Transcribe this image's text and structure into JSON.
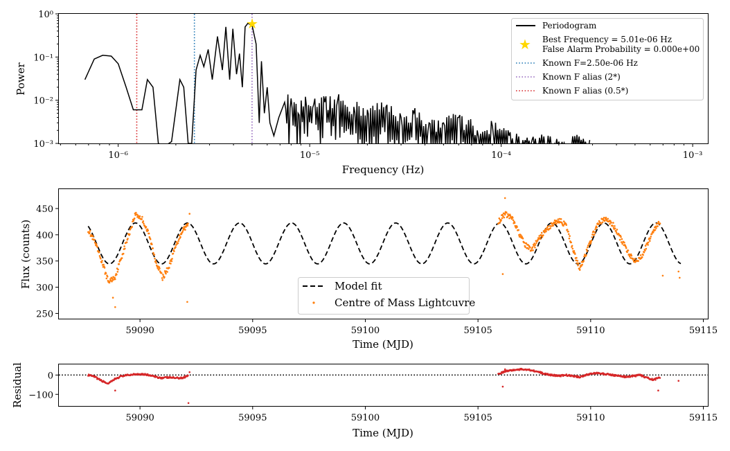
{
  "chart_data": [
    {
      "type": "line",
      "xscale": "log",
      "yscale": "log",
      "xlabel": "Frequency (Hz)",
      "ylabel": "Power",
      "xlim": [
        4.9e-07,
        0.0012
      ],
      "ylim": [
        0.001,
        1.0
      ],
      "xticks": [
        {
          "value": 1e-06,
          "label": "10⁻⁶"
        },
        {
          "value": 1e-05,
          "label": "10⁻⁵"
        },
        {
          "value": 0.0001,
          "label": "10⁻⁴"
        },
        {
          "value": 0.001,
          "label": "10⁻³"
        }
      ],
      "yticks": [
        {
          "value": 1,
          "label": "10⁰"
        },
        {
          "value": 0.1,
          "label": "10⁻¹"
        },
        {
          "value": 0.01,
          "label": "10⁻²"
        },
        {
          "value": 0.001,
          "label": "10⁻³"
        }
      ],
      "series": [
        {
          "name": "Periodogram",
          "color": "#000000",
          "x": [
            6.7e-07,
            7.5e-07,
            8.3e-07,
            9.2e-07,
            1e-06,
            1.1e-06,
            1.2e-06,
            1.33e-06,
            1.42e-06,
            1.52e-06,
            1.62e-06,
            1.75e-06,
            1.9e-06,
            2e-06,
            2.1e-06,
            2.2e-06,
            2.32e-06,
            2.42e-06,
            2.55e-06,
            2.68e-06,
            2.8e-06,
            2.95e-06,
            3.1e-06,
            3.3e-06,
            3.5e-06,
            3.65e-06,
            3.82e-06,
            3.97e-06,
            4.15e-06,
            4.3e-06,
            4.45e-06,
            4.6e-06,
            4.75e-06,
            5e-06,
            5.25e-06,
            5.45e-06,
            5.6e-06,
            5.8e-06,
            6e-06,
            6.2e-06,
            6.5e-06,
            6.9e-06,
            7.4e-06,
            8e-06,
            8.7e-06,
            9.5e-06,
            1.05e-05,
            1.2e-05,
            1.4e-05,
            1.7e-05,
            2e-05,
            2.5e-05,
            3e-05,
            3.5e-05,
            4.2e-05,
            5e-05,
            6e-05,
            7.5e-05,
            9e-05,
            0.00011,
            0.000135,
            0.000145,
            0.0002,
            0.00029
          ],
          "y": [
            0.03,
            0.09,
            0.11,
            0.105,
            0.07,
            0.02,
            0.006,
            0.006,
            0.03,
            0.02,
            0.001,
            0.0008,
            0.0011,
            0.006,
            0.03,
            0.02,
            0.001,
            0.001,
            0.05,
            0.11,
            0.06,
            0.15,
            0.03,
            0.3,
            0.05,
            0.5,
            0.03,
            0.45,
            0.04,
            0.12,
            0.02,
            0.5,
            0.6,
            0.55,
            0.2,
            0.003,
            0.08,
            0.005,
            0.02,
            0.003,
            0.0015,
            0.004,
            0.009,
            0.011,
            0.005,
            0.012,
            0.008,
            0.009,
            0.01,
            0.007,
            0.006,
            0.007,
            0.004,
            0.005,
            0.003,
            0.003,
            0.004,
            0.002,
            0.0025,
            0.0015,
            0.001,
            0.0012,
            0.0011,
            0.0012
          ]
        }
      ],
      "best_frequency": {
        "x": 5.01e-06,
        "y": 0.6,
        "color": "#ffd700"
      },
      "vlines": [
        {
          "x": 2.5e-06,
          "color": "#1f77b4",
          "style": "dotted"
        },
        {
          "x": 5e-06,
          "color": "#9467bd",
          "style": "dotted"
        },
        {
          "x": 1.25e-06,
          "color": "#d62728",
          "style": "dotted"
        }
      ],
      "legend": {
        "placement": "top-right",
        "entries": [
          {
            "label": "Periodogram",
            "marker": "line",
            "color": "#000000"
          },
          {
            "label": "Best Frequency = 5.01e-06 Hz",
            "label2": "False Alarm Probability = 0.000e+00",
            "marker": "star",
            "color": "#ffd700"
          },
          {
            "label": "Known F=2.50e-06 Hz",
            "marker": "dotted",
            "color": "#1f77b4"
          },
          {
            "label": "Known F alias (2*)",
            "marker": "dotted",
            "color": "#9467bd"
          },
          {
            "label": "Known F alias (0.5*)",
            "marker": "dotted",
            "color": "#d62728"
          }
        ]
      }
    },
    {
      "type": "scatter",
      "xlabel": "Time (MJD)",
      "ylabel": "Flux (counts)",
      "xlim": [
        59086.4,
        59115.2
      ],
      "ylim": [
        240,
        487
      ],
      "xticks": [
        59090,
        59095,
        59100,
        59105,
        59110,
        59115
      ],
      "yticks": [
        250,
        300,
        350,
        400,
        450
      ],
      "model": {
        "name": "Model fit",
        "color": "#000000",
        "style": "dashed",
        "mean": 383.5,
        "amplitude": 39,
        "period_days": 2.31,
        "x_start": 59087.7,
        "x_end": 59114.0,
        "phase_ref_peak": 59089.8
      },
      "series": [
        {
          "name": "Centre of Mass Lightcuvre",
          "color": "#ff7f0e",
          "segments": [
            {
              "x": [
                59087.7,
                59088.0,
                59088.3,
                59088.6,
                59088.9,
                59089.2,
                59089.5,
                59089.8,
                59090.1,
                59090.4,
                59090.7,
                59091.0,
                59091.3,
                59091.6,
                59091.9,
                59092.15
              ],
              "y": [
                410,
                385,
                350,
                310,
                320,
                360,
                400,
                440,
                430,
                400,
                350,
                318,
                340,
                380,
                410,
                420
              ]
            },
            {
              "x": [
                59105.9,
                59106.2,
                59106.5,
                59106.8,
                59107.1,
                59107.4,
                59107.7,
                59108.0,
                59108.3,
                59108.6,
                59108.9,
                59109.2,
                59109.5,
                59109.8,
                59110.1,
                59110.4,
                59110.7,
                59111.0,
                59111.3,
                59111.6,
                59111.9,
                59112.2,
                59112.5,
                59112.8,
                59113.1
              ],
              "y": [
                425,
                440,
                432,
                405,
                380,
                372,
                392,
                408,
                420,
                428,
                418,
                375,
                335,
                365,
                400,
                425,
                430,
                418,
                395,
                372,
                352,
                355,
                380,
                410,
                425
              ]
            }
          ],
          "outliers": [
            [
              59088.9,
              262
            ],
            [
              59088.8,
              280
            ],
            [
              59092.1,
              272
            ],
            [
              59092.2,
              440
            ],
            [
              59106.2,
              470
            ],
            [
              59106.1,
              325
            ],
            [
              59113.2,
              322
            ],
            [
              59113.95,
              318
            ],
            [
              59113.9,
              330
            ]
          ]
        }
      ],
      "legend": {
        "placement": "bottom-center",
        "entries": [
          {
            "label": "Model fit",
            "marker": "dashed",
            "color": "#000000"
          },
          {
            "label": "Centre of Mass Lightcuvre",
            "marker": "dot",
            "color": "#ff7f0e"
          }
        ]
      }
    },
    {
      "type": "scatter",
      "xlabel": "Time (MJD)",
      "ylabel": "Residual",
      "xlim": [
        59086.4,
        59115.2
      ],
      "ylim": [
        -160,
        55
      ],
      "xticks": [
        59090,
        59095,
        59100,
        59105,
        59110,
        59115
      ],
      "yticks": [
        {
          "value": 0,
          "label": "0"
        },
        {
          "value": -100,
          "label": "−100"
        }
      ],
      "zero_line": {
        "y": 0,
        "color": "#000000",
        "style": "dotted"
      },
      "series": [
        {
          "name": "",
          "color": "#d62728",
          "segments": [
            {
              "x": [
                59087.7,
                59088.0,
                59088.3,
                59088.6,
                59088.9,
                59089.2,
                59089.5,
                59089.8,
                59090.1,
                59090.4,
                59090.7,
                59091.0,
                59091.3,
                59091.6,
                59091.9,
                59092.15
              ],
              "y": [
                0,
                -10,
                -30,
                -45,
                -20,
                -5,
                0,
                5,
                5,
                0,
                -10,
                -15,
                -12,
                -15,
                -15,
                0
              ]
            },
            {
              "x": [
                59105.9,
                59106.2,
                59106.5,
                59106.8,
                59107.1,
                59107.4,
                59107.7,
                59108.0,
                59108.3,
                59108.6,
                59108.9,
                59109.2,
                59109.5,
                59109.8,
                59110.1,
                59110.4,
                59110.7,
                59111.0,
                59111.3,
                59111.6,
                59111.9,
                59112.2,
                59112.5,
                59112.8,
                59113.1
              ],
              "y": [
                5,
                20,
                25,
                28,
                30,
                25,
                15,
                5,
                0,
                -5,
                0,
                -5,
                -10,
                0,
                10,
                8,
                5,
                0,
                -5,
                -10,
                -5,
                0,
                -15,
                -25,
                -10
              ]
            }
          ],
          "outliers": [
            [
              59088.9,
              -80
            ],
            [
              59092.15,
              -145
            ],
            [
              59092.2,
              15
            ],
            [
              59106.1,
              -60
            ],
            [
              59106.2,
              30
            ],
            [
              59113.0,
              -80
            ],
            [
              59113.9,
              -30
            ]
          ]
        }
      ]
    }
  ]
}
